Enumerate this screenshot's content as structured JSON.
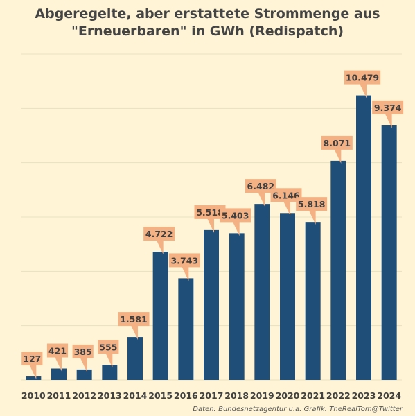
{
  "chart_data": {
    "type": "bar",
    "title_line1": "Abgeregelte, aber erstattete Strommenge aus",
    "title_line2": "\"Erneuerbaren\" in GWh (Redispatch)",
    "categories": [
      "2010",
      "2011",
      "2012",
      "2013",
      "2014",
      "2015",
      "2016",
      "2017",
      "2018",
      "2019",
      "2020",
      "2021",
      "2022",
      "2023",
      "2024"
    ],
    "values": [
      127,
      421,
      385,
      555,
      1581,
      4722,
      3743,
      5518,
      5403,
      6482,
      6146,
      5818,
      8071,
      10479,
      9374
    ],
    "value_labels": [
      "127",
      "421",
      "385",
      "555",
      "1.581",
      "4.722",
      "3.743",
      "5.518",
      "5.403",
      "6.482",
      "6.146",
      "5.818",
      "8.071",
      "10.479",
      "9.374"
    ],
    "ylim": [
      0,
      12000
    ],
    "grid": true,
    "colors": {
      "background": "#fff5d6",
      "bar": "#1f4e79",
      "label_box": "#f4b183",
      "label_text": "#404040",
      "grid": "#e8dfc2"
    }
  },
  "source_note": "Daten: Bundesnetzagentur u.a.  Grafik: TheRealTom@Twitter"
}
